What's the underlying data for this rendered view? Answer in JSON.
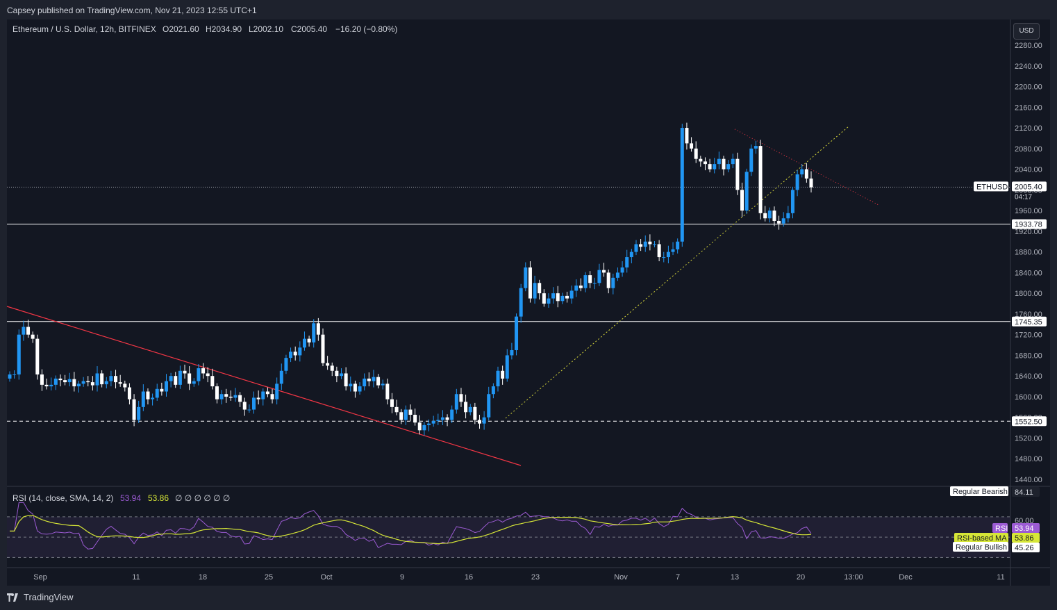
{
  "header": {
    "published": "Capsey published on TradingView.com, Nov 21, 2023 12:55 UTC+1"
  },
  "footer": {
    "brand": "TradingView"
  },
  "currency_button": "USD",
  "colors": {
    "background": "#131722",
    "up_candle": "#2196f3",
    "down_candle": "#ffffff",
    "red_line": "#f23645",
    "yellow_dotted": "#d4d43a",
    "rsi_line": "#9c5bd4",
    "rsi_ma": "#d6e637",
    "rsi_band": "#2a2440"
  },
  "chart_data": [
    {
      "type": "candlestick",
      "title": "Ethereum / U.S. Dollar, 12h, BITFINEX",
      "ohlc_label": {
        "o": "O2021.60",
        "h": "H2034.90",
        "l": "L2002.10",
        "c": "C2005.40",
        "chg": "−16.20 (−0.80%)"
      },
      "symbol_tag": "ETHUSD",
      "last_price": "2005.40",
      "countdown": "04:17",
      "ylim": [
        1420,
        2300
      ],
      "y_ticks": [
        "2280.00",
        "2240.00",
        "2200.00",
        "2160.00",
        "2120.00",
        "2080.00",
        "2040.00",
        "2000.00",
        "1960.00",
        "1920.00",
        "1880.00",
        "1840.00",
        "1800.00",
        "1760.00",
        "1720.00",
        "1680.00",
        "1640.00",
        "1600.00",
        "1560.00",
        "1520.00",
        "1480.00",
        "1440.00"
      ],
      "x_labels": [
        "Sep",
        "11",
        "18",
        "25",
        "Oct",
        "9",
        "16",
        "23",
        "Nov",
        "7",
        "13",
        "20",
        "13:00",
        "Dec",
        "11"
      ],
      "horizontal_levels": [
        {
          "label": "1933.78",
          "value": 1933.78,
          "style": "solid"
        },
        {
          "label": "1745.35",
          "value": 1745.35,
          "style": "solid"
        },
        {
          "label": "1552.50",
          "value": 1552.5,
          "style": "dashed"
        }
      ],
      "closes": [
        1643,
        1643,
        1720,
        1735,
        1720,
        1712,
        1643,
        1623,
        1620,
        1623,
        1635,
        1632,
        1628,
        1634,
        1620,
        1625,
        1630,
        1628,
        1622,
        1645,
        1624,
        1630,
        1640,
        1628,
        1625,
        1618,
        1595,
        1555,
        1580,
        1610,
        1595,
        1598,
        1615,
        1610,
        1630,
        1640,
        1623,
        1650,
        1645,
        1625,
        1630,
        1655,
        1645,
        1640,
        1620,
        1595,
        1605,
        1600,
        1598,
        1603,
        1590,
        1575,
        1575,
        1598,
        1595,
        1610,
        1605,
        1595,
        1625,
        1650,
        1675,
        1687,
        1680,
        1695,
        1712,
        1705,
        1742,
        1720,
        1665,
        1660,
        1650,
        1640,
        1645,
        1620,
        1625,
        1610,
        1620,
        1635,
        1630,
        1638,
        1622,
        1625,
        1595,
        1580,
        1570,
        1555,
        1575,
        1565,
        1550,
        1535,
        1545,
        1548,
        1553,
        1555,
        1560,
        1555,
        1575,
        1605,
        1590,
        1570,
        1580,
        1555,
        1548,
        1560,
        1605,
        1620,
        1650,
        1635,
        1680,
        1690,
        1755,
        1810,
        1850,
        1790,
        1820,
        1800,
        1780,
        1790,
        1800,
        1785,
        1795,
        1790,
        1805,
        1815,
        1810,
        1835,
        1820,
        1820,
        1845,
        1840,
        1810,
        1830,
        1840,
        1850,
        1870,
        1880,
        1895,
        1890,
        1900,
        1895,
        1895,
        1870,
        1870,
        1880,
        1885,
        1900,
        2120,
        2090,
        2080,
        2060,
        2055,
        2050,
        2040,
        2050,
        2060,
        2040,
        2050,
        2060,
        2000,
        1960,
        2035,
        2080,
        2085,
        1955,
        1945,
        1960,
        1940,
        1935,
        1945,
        1955,
        2000,
        2030,
        2040,
        2022,
        2005
      ],
      "rsi_panel": {
        "title": "RSI (14, close, SMA, 14, 2)",
        "rsi_value": "53.94",
        "ma_value": "53.86",
        "extra": "∅ ∅ ∅ ∅ ∅ ∅",
        "ylim": [
          20,
          100
        ],
        "ticks": [
          "60.00"
        ],
        "levels": [
          70,
          50,
          30
        ],
        "tags": {
          "regular_bearish": "Regular Bearish",
          "upper": "84.11",
          "rsi_label": "RSI",
          "rsi_ma_label": "RSI-based MA",
          "regular_bullish": "Regular Bullish",
          "lower": "45.26"
        }
      }
    }
  ]
}
